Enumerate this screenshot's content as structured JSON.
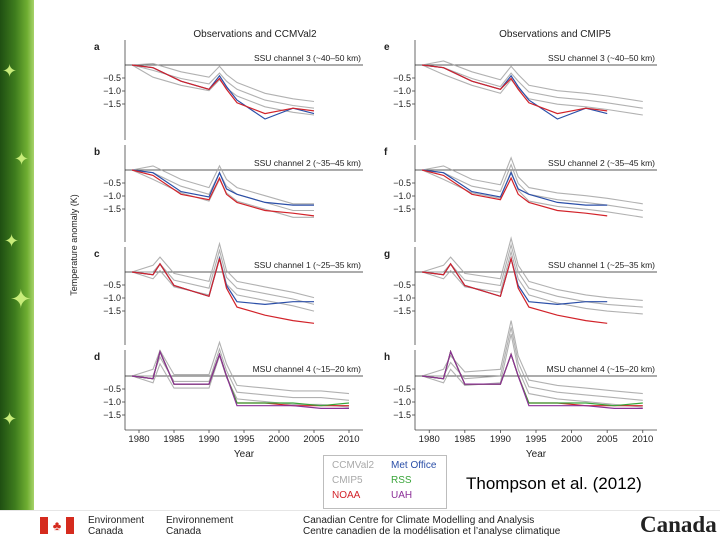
{
  "slide": {
    "citation": "Thompson et al. (2012)",
    "footer": {
      "env_en_1": "Environment",
      "env_en_2": "Canada",
      "env_fr_1": "Environnement",
      "env_fr_2": "Canada",
      "centre_en": "Canadian Centre for Climate Modelling and Analysis",
      "centre_fr": "Centre canadien de la modélisation et l’analyse climatique",
      "wordmark": "Canada"
    }
  },
  "figure": {
    "ylabel": "Temperature anomaly (K)",
    "xlabel_left": "Year",
    "xlabel_right": "Year",
    "col_left_title": "Observations and CCMVal2",
    "col_right_title": "Observations and CMIP5",
    "x_ticks": [
      "1980",
      "1985",
      "1990",
      "1995",
      "2000",
      "2005",
      "2010"
    ],
    "y_ticks": [
      "-0.5",
      "-1.0",
      "-1.5"
    ],
    "legend": [
      {
        "label": "CCMVal2",
        "color": "#a9a9a9"
      },
      {
        "label": "Met Office",
        "color": "#2b4fa8"
      },
      {
        "label": "CMIP5",
        "color": "#a9a9a9"
      },
      {
        "label": "RSS",
        "color": "#3aa53a"
      },
      {
        "label": "NOAA",
        "color": "#d2232a"
      },
      {
        "label": "UAH",
        "color": "#8b2f97"
      }
    ]
  },
  "chart_data": [
    {
      "type": "line",
      "panel": "a",
      "title": "SSU channel 3 (~40–50 km)",
      "source": "Observations and CCMVal2",
      "xlim": [
        1978,
        2012
      ],
      "ylim": [
        -2.2,
        0.5
      ],
      "x": [
        1979,
        1982,
        1986,
        1990,
        1991.5,
        1992.5,
        1994,
        1998,
        2002,
        2005
      ],
      "series": [
        {
          "name": "Met Office",
          "values": [
            0,
            -0.1,
            -0.6,
            -0.9,
            -0.4,
            -0.8,
            -1.3,
            -2.0,
            -1.6,
            -1.8
          ]
        },
        {
          "name": "NOAA",
          "values": [
            0,
            -0.1,
            -0.6,
            -0.9,
            -0.5,
            -0.9,
            -1.4,
            -1.8,
            -1.6,
            -1.7
          ]
        },
        {
          "name": "CCMVal2",
          "values": [
            0,
            -0.2,
            -0.5,
            -0.7,
            -0.3,
            -0.6,
            -0.9,
            -1.3,
            -1.5,
            -1.6
          ]
        }
      ]
    },
    {
      "type": "line",
      "panel": "b",
      "title": "SSU channel 2 (~35–45 km)",
      "source": "Observations and CCMVal2",
      "xlim": [
        1978,
        2012
      ],
      "ylim": [
        -2.2,
        0.5
      ],
      "x": [
        1979,
        1982,
        1986,
        1990,
        1991.5,
        1992.5,
        1994,
        1998,
        2002,
        2005
      ],
      "series": [
        {
          "name": "Met Office",
          "values": [
            0,
            -0.1,
            -0.8,
            -1.0,
            -0.1,
            -0.7,
            -0.9,
            -1.2,
            -1.3,
            -1.3
          ]
        },
        {
          "name": "NOAA",
          "values": [
            0,
            -0.2,
            -0.9,
            -1.1,
            -0.3,
            -0.9,
            -1.2,
            -1.5,
            -1.6,
            -1.7
          ]
        },
        {
          "name": "CCMVal2",
          "values": [
            0,
            -0.1,
            -0.6,
            -0.9,
            -0.1,
            -0.6,
            -0.9,
            -1.2,
            -1.5,
            -1.5
          ]
        }
      ]
    },
    {
      "type": "line",
      "panel": "c",
      "title": "SSU channel 1 (~25–35 km)",
      "source": "Observations and CCMVal2",
      "xlim": [
        1978,
        2012
      ],
      "ylim": [
        -2.2,
        0.5
      ],
      "x": [
        1979,
        1982,
        1983,
        1985,
        1990,
        1991.5,
        1992.5,
        1994,
        1998,
        2002,
        2005
      ],
      "series": [
        {
          "name": "Met Office",
          "values": [
            0,
            -0.1,
            0.3,
            -0.5,
            -0.9,
            0.5,
            -0.5,
            -1.1,
            -1.2,
            -1.1,
            -1.1
          ]
        },
        {
          "name": "NOAA",
          "values": [
            0,
            -0.1,
            0.3,
            -0.5,
            -0.9,
            0.5,
            -0.6,
            -1.3,
            -1.6,
            -1.8,
            -1.9
          ]
        },
        {
          "name": "CCMVal2",
          "values": [
            0,
            0,
            0.3,
            -0.3,
            -0.6,
            0.8,
            -0.2,
            -0.6,
            -0.8,
            -1.0,
            -1.2
          ]
        }
      ]
    },
    {
      "type": "line",
      "panel": "d",
      "title": "MSU channel 4 (~15–20 km)",
      "source": "Observations and CCMVal2",
      "xlim": [
        1978,
        2012
      ],
      "ylim": [
        -2.2,
        0.5
      ],
      "x": [
        1979,
        1982,
        1983,
        1985,
        1990,
        1991.5,
        1992.5,
        1994,
        1998,
        2002,
        2006,
        2010
      ],
      "series": [
        {
          "name": "NOAA",
          "values": [
            0,
            -0.1,
            0.9,
            -0.3,
            -0.3,
            0.8,
            0.0,
            -1.0,
            -1.0,
            -1.1,
            -1.1,
            -1.1
          ]
        },
        {
          "name": "RSS",
          "values": [
            0,
            -0.1,
            0.9,
            -0.3,
            -0.3,
            0.8,
            0.0,
            -1.0,
            -1.0,
            -1.0,
            -1.1,
            -1.0
          ]
        },
        {
          "name": "UAH",
          "values": [
            0,
            -0.1,
            0.9,
            -0.3,
            -0.3,
            0.8,
            0.0,
            -1.1,
            -1.1,
            -1.1,
            -1.2,
            -1.2
          ]
        },
        {
          "name": "CCMVal2",
          "values": [
            0,
            0,
            0.7,
            -0.2,
            -0.2,
            1.0,
            0.2,
            -0.6,
            -0.7,
            -0.8,
            -0.8,
            -0.9
          ]
        }
      ]
    },
    {
      "type": "line",
      "panel": "e",
      "title": "SSU channel 3 (~40–50 km)",
      "source": "Observations and CMIP5",
      "xlim": [
        1978,
        2012
      ],
      "ylim": [
        -2.2,
        0.5
      ],
      "x": [
        1979,
        1982,
        1986,
        1990,
        1991.5,
        1992.5,
        1994,
        1998,
        2002,
        2005,
        2010
      ],
      "series": [
        {
          "name": "Met Office",
          "values": [
            0,
            -0.1,
            -0.6,
            -0.9,
            -0.4,
            -0.8,
            -1.3,
            -2.0,
            -1.6,
            -1.8,
            null
          ]
        },
        {
          "name": "NOAA",
          "values": [
            0,
            -0.1,
            -0.6,
            -0.9,
            -0.5,
            -0.9,
            -1.4,
            -1.8,
            -1.6,
            -1.7,
            null
          ]
        },
        {
          "name": "CMIP5",
          "values": [
            0,
            -0.1,
            -0.5,
            -0.8,
            -0.3,
            -0.6,
            -1.0,
            -1.2,
            -1.3,
            -1.4,
            -1.6
          ]
        }
      ]
    },
    {
      "type": "line",
      "panel": "f",
      "title": "SSU channel 2 (~35–45 km)",
      "source": "Observations and CMIP5",
      "xlim": [
        1978,
        2012
      ],
      "ylim": [
        -2.2,
        0.5
      ],
      "x": [
        1979,
        1982,
        1986,
        1990,
        1991.5,
        1992.5,
        1994,
        1998,
        2002,
        2005,
        2010
      ],
      "series": [
        {
          "name": "Met Office",
          "values": [
            0,
            -0.1,
            -0.8,
            -1.0,
            -0.1,
            -0.7,
            -0.9,
            -1.2,
            -1.3,
            -1.3,
            null
          ]
        },
        {
          "name": "NOAA",
          "values": [
            0,
            -0.2,
            -0.9,
            -1.1,
            -0.3,
            -0.9,
            -1.2,
            -1.5,
            -1.6,
            -1.7,
            null
          ]
        },
        {
          "name": "CMIP5",
          "values": [
            0,
            -0.1,
            -0.6,
            -0.8,
            0.2,
            -0.5,
            -0.9,
            -1.1,
            -1.2,
            -1.3,
            -1.5
          ]
        }
      ]
    },
    {
      "type": "line",
      "panel": "g",
      "title": "SSU channel 1 (~25–35 km)",
      "source": "Observations and CMIP5",
      "xlim": [
        1978,
        2012
      ],
      "ylim": [
        -2.2,
        0.5
      ],
      "x": [
        1979,
        1982,
        1983,
        1985,
        1990,
        1991.5,
        1992.5,
        1994,
        1998,
        2002,
        2005,
        2010
      ],
      "series": [
        {
          "name": "Met Office",
          "values": [
            0,
            -0.1,
            0.3,
            -0.5,
            -0.9,
            0.5,
            -0.5,
            -1.1,
            -1.2,
            -1.1,
            -1.1,
            null
          ]
        },
        {
          "name": "NOAA",
          "values": [
            0,
            -0.1,
            0.3,
            -0.5,
            -0.9,
            0.5,
            -0.6,
            -1.3,
            -1.6,
            -1.8,
            -1.9,
            null
          ]
        },
        {
          "name": "CMIP5",
          "values": [
            0,
            0,
            0.3,
            -0.3,
            -0.5,
            1.0,
            0.0,
            -0.6,
            -0.9,
            -1.1,
            -1.2,
            -1.3
          ]
        }
      ]
    },
    {
      "type": "line",
      "panel": "h",
      "title": "MSU channel 4 (~15–20 km)",
      "source": "Observations and CMIP5",
      "xlim": [
        1978,
        2012
      ],
      "ylim": [
        -2.2,
        0.5
      ],
      "x": [
        1979,
        1982,
        1983,
        1985,
        1990,
        1991.5,
        1992.5,
        1994,
        1998,
        2002,
        2006,
        2010
      ],
      "series": [
        {
          "name": "NOAA",
          "values": [
            0,
            -0.1,
            0.9,
            -0.3,
            -0.3,
            0.8,
            0.0,
            -1.0,
            -1.0,
            -1.1,
            -1.1,
            -1.1
          ]
        },
        {
          "name": "RSS",
          "values": [
            0,
            -0.1,
            0.9,
            -0.3,
            -0.3,
            0.8,
            0.0,
            -1.0,
            -1.0,
            -1.0,
            -1.1,
            -1.0
          ]
        },
        {
          "name": "UAH",
          "values": [
            0,
            -0.1,
            0.9,
            -0.3,
            -0.3,
            0.8,
            0.0,
            -1.1,
            -1.1,
            -1.1,
            -1.2,
            -1.2
          ]
        },
        {
          "name": "CMIP5",
          "values": [
            0,
            0,
            0.5,
            -0.1,
            0.0,
            1.8,
            0.5,
            -0.4,
            -0.6,
            -0.7,
            -0.8,
            -0.9
          ]
        }
      ]
    }
  ]
}
